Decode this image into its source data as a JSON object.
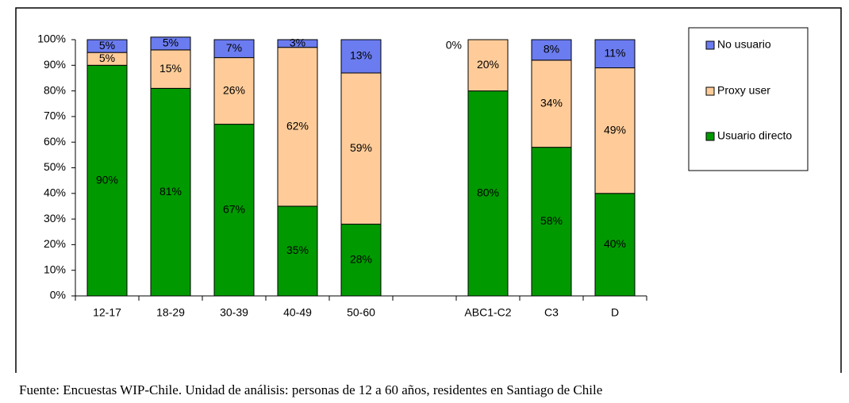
{
  "chart_data": {
    "type": "stacked_bar",
    "categories": [
      "12-17",
      "18-29",
      "30-39",
      "40-49",
      "50-60",
      null,
      "ABC1-C2",
      "C3",
      "D"
    ],
    "series": [
      {
        "name": "No usuario",
        "color": "#6b7cf0",
        "values": [
          5,
          5,
          7,
          3,
          13,
          null,
          0,
          8,
          11
        ],
        "value_labels": [
          "5%",
          "5%",
          "7%",
          "3%",
          "13%",
          null,
          "0%",
          "8%",
          "11%"
        ]
      },
      {
        "name": "Proxy user",
        "color": "#ffcc99",
        "values": [
          5,
          15,
          26,
          62,
          59,
          null,
          20,
          34,
          49
        ],
        "value_labels": [
          "5%",
          "15%",
          "26%",
          "62%",
          "59%",
          null,
          "20%",
          "34%",
          "49%"
        ]
      },
      {
        "name": "Usuario directo",
        "color": "#009a00",
        "values": [
          90,
          81,
          67,
          35,
          28,
          null,
          80,
          58,
          40
        ],
        "value_labels": [
          "90%",
          "81%",
          "67%",
          "35%",
          "28%",
          null,
          "80%",
          "58%",
          "40%"
        ]
      }
    ],
    "ylim": [
      0,
      100
    ],
    "yticks": [
      {
        "value": 0,
        "label": "0%"
      },
      {
        "value": 10,
        "label": "10%"
      },
      {
        "value": 20,
        "label": "20%"
      },
      {
        "value": 30,
        "label": "30%"
      },
      {
        "value": 40,
        "label": "40%"
      },
      {
        "value": 50,
        "label": "50%"
      },
      {
        "value": 60,
        "label": "60%"
      },
      {
        "value": 70,
        "label": "70%"
      },
      {
        "value": 80,
        "label": "80%"
      },
      {
        "value": 90,
        "label": "90%"
      },
      {
        "value": 100,
        "label": "100%"
      }
    ],
    "legend": "right",
    "source": "Fuente: Encuestas WIP-Chile. Unidad de análisis: personas de 12 a 60 años, residentes en Santiago de Chile"
  }
}
